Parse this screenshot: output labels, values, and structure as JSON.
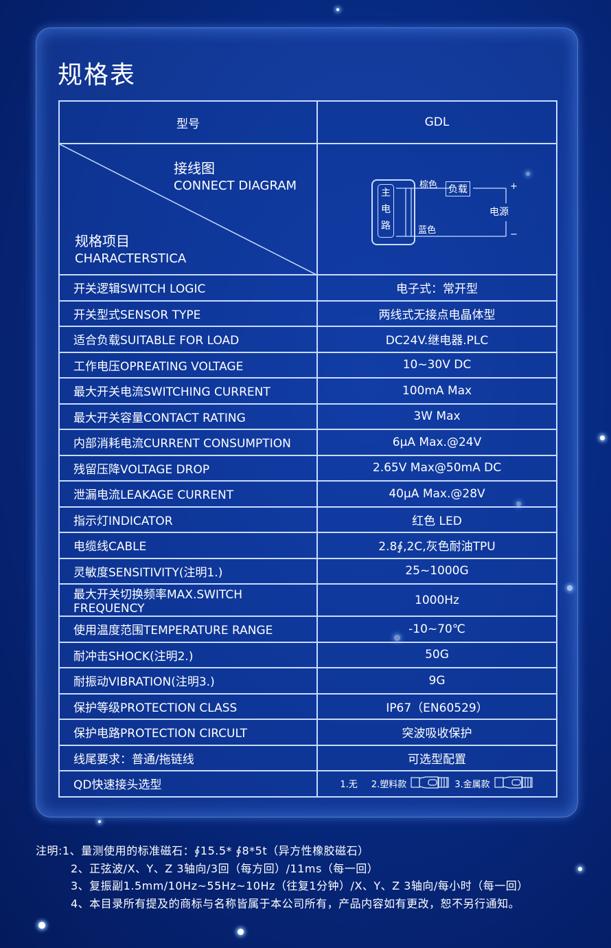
{
  "title": "规格表",
  "header": {
    "model_label": "型号",
    "model_value": "GDL"
  },
  "diagram_cell": {
    "top_cn": "接线图",
    "top_en": "CONNECT DIAGRAM",
    "bottom_cn": "规格项目",
    "bottom_en": "CHARACTERSTICA"
  },
  "wiring": {
    "circuit": [
      "主",
      "电",
      "路"
    ],
    "brown": "棕色",
    "blue": "蓝色",
    "load": "负载",
    "power": "电源",
    "plus": "+",
    "minus": "−"
  },
  "rows": [
    {
      "label": "开关逻辑SWITCH LOGIC",
      "value": "电子式：常开型"
    },
    {
      "label": "开关型式SENSOR TYPE",
      "value": "两线式无接点电晶体型"
    },
    {
      "label": "适合负载SUITABLE FOR LOAD",
      "value": "DC24V.继电器.PLC"
    },
    {
      "label": "工作电压OPREATING VOLTAGE",
      "value": "10~30V DC"
    },
    {
      "label": "最大开关电流SWITCHING CURRENT",
      "value": "100mA Max"
    },
    {
      "label": "最大开关容量CONTACT RATING",
      "value": "3W Max"
    },
    {
      "label": "内部消耗电流CURRENT CONSUMPTION",
      "value": "6μA Max.@24V"
    },
    {
      "label": "残留压降VOLTAGE DROP",
      "value": "2.65V Max@50mA DC"
    },
    {
      "label": "泄漏电流LEAKAGE CURRENT",
      "value": "40μA Max.@28V"
    },
    {
      "label": "指示灯INDICATOR",
      "value": "红色  LED"
    },
    {
      "label": "电缆线CABLE",
      "value": "2.8∮,2C,灰色耐油TPU"
    },
    {
      "label": "灵敏度SENSITIVITY(注明1.)",
      "value": "25~1000G"
    },
    {
      "label": "最大开关切换频率MAX.SWITCH FREQUENCY",
      "value": "1000Hz"
    },
    {
      "label": "使用温度范围TEMPERATURE RANGE",
      "value": "-10~70℃"
    },
    {
      "label": "耐冲击SHOCK(注明2.)",
      "value": "50G"
    },
    {
      "label": "耐振动VIBRATION(注明3.)",
      "value": "9G"
    },
    {
      "label": "保护等级PROTECTION CLASS",
      "value": "IP67（EN60529）"
    },
    {
      "label": "保护电路PROTECTION CIRCULT",
      "value": "突波吸收保护"
    },
    {
      "label": "线尾要求：普通/拖链线",
      "value": "可选型配置"
    }
  ],
  "qd": {
    "label": "QD快速接头选型",
    "opt1": "1.无",
    "opt2": "2.塑料款",
    "opt3": "3.金属款"
  },
  "notes": [
    "注明:1、量测使用的标准磁石：∮15.5* ∮8*5t（异方性橡胶磁石）",
    "2、正弦波/X、Y、Z 3轴向/3回（每方回）/11ms（每一回）",
    "3、复振副1.5mm/10Hz~55Hz~10Hz（往复1分钟）/X、Y、Z 3轴向/每小时（每一回）",
    "4、本目录所有提及的商标与名称皆属于本公司所有，产品内容如有更改，恕不另行通知。"
  ]
}
